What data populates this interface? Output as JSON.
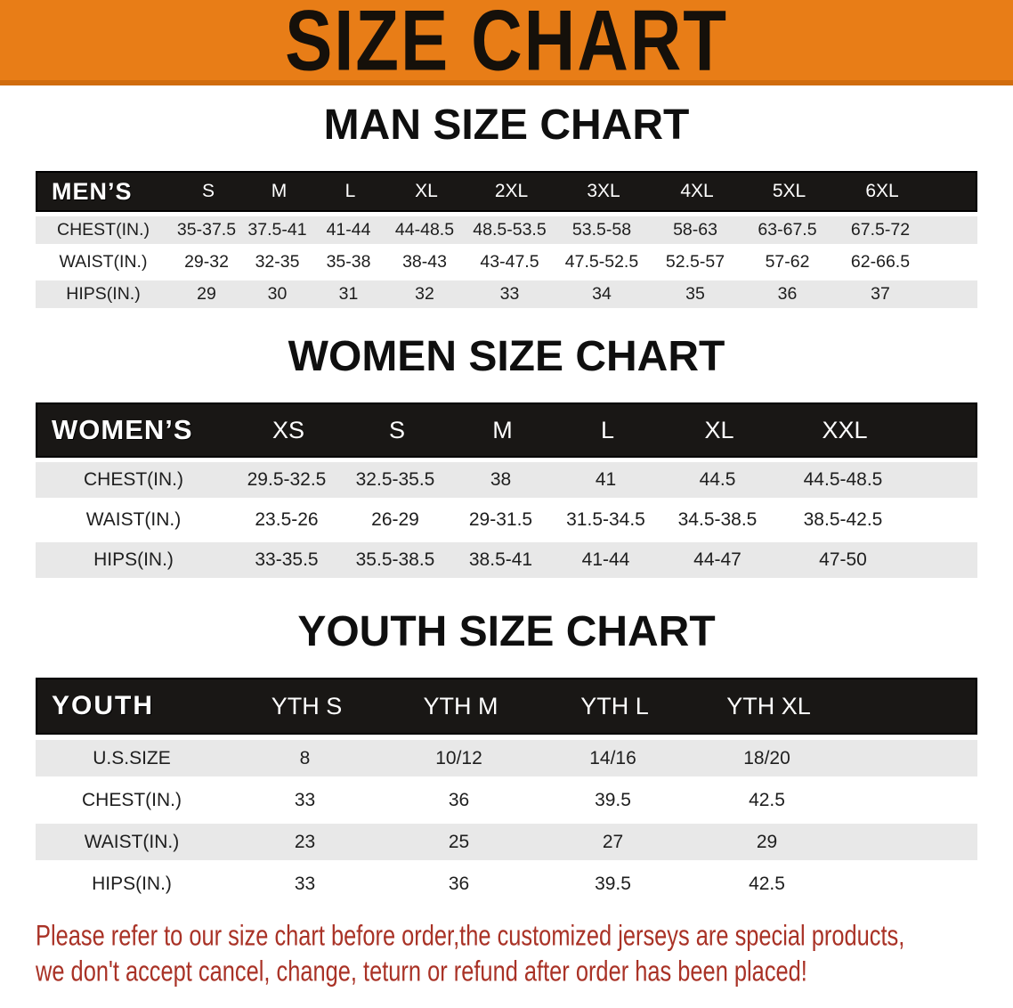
{
  "banner": {
    "title": "SIZE CHART"
  },
  "men": {
    "heading": "MAN SIZE CHART",
    "corner": "MEN’S",
    "columns": [
      "S",
      "M",
      "L",
      "XL",
      "2XL",
      "3XL",
      "4XL",
      "5XL",
      "6XL"
    ],
    "rows": [
      {
        "label": "CHEST(IN.)",
        "values": [
          "35-37.5",
          "37.5-41",
          "41-44",
          "44-48.5",
          "48.5-53.5",
          "53.5-58",
          "58-63",
          "63-67.5",
          "67.5-72"
        ]
      },
      {
        "label": "WAIST(IN.)",
        "values": [
          "29-32",
          "32-35",
          "35-38",
          "38-43",
          "43-47.5",
          "47.5-52.5",
          "52.5-57",
          "57-62",
          "62-66.5"
        ]
      },
      {
        "label": "HIPS(IN.)",
        "values": [
          "29",
          "30",
          "31",
          "32",
          "33",
          "34",
          "35",
          "36",
          "37"
        ]
      }
    ]
  },
  "women": {
    "heading": "WOMEN SIZE CHART",
    "corner": "WOMEN’S",
    "columns": [
      "XS",
      "S",
      "M",
      "L",
      "XL",
      "XXL"
    ],
    "rows": [
      {
        "label": "CHEST(IN.)",
        "values": [
          "29.5-32.5",
          "32.5-35.5",
          "38",
          "41",
          "44.5",
          "44.5-48.5"
        ]
      },
      {
        "label": "WAIST(IN.)",
        "values": [
          "23.5-26",
          "26-29",
          "29-31.5",
          "31.5-34.5",
          "34.5-38.5",
          "38.5-42.5"
        ]
      },
      {
        "label": "HIPS(IN.)",
        "values": [
          "33-35.5",
          "35.5-38.5",
          "38.5-41",
          "41-44",
          "44-47",
          "47-50"
        ]
      }
    ]
  },
  "youth": {
    "heading": "YOUTH SIZE CHART",
    "corner": "YOUTH",
    "columns": [
      "YTH S",
      "YTH M",
      "YTH L",
      "YTH XL"
    ],
    "rows": [
      {
        "label": "U.S.SIZE",
        "values": [
          "8",
          "10/12",
          "14/16",
          "18/20"
        ]
      },
      {
        "label": "CHEST(IN.)",
        "values": [
          "33",
          "36",
          "39.5",
          "42.5"
        ]
      },
      {
        "label": "WAIST(IN.)",
        "values": [
          "23",
          "25",
          "27",
          "29"
        ]
      },
      {
        "label": "HIPS(IN.)",
        "values": [
          "33",
          "36",
          "39.5",
          "42.5"
        ]
      }
    ]
  },
  "footer": {
    "line1": "Please refer to our size chart before order,the customized jerseys are special products,",
    "line2": "we don't accept cancel, change, teturn or refund after order has been placed!"
  },
  "colors": {
    "banner_orange": "#E87D17",
    "banner_orange_edge": "#D06C0E",
    "header_black": "#191715",
    "row_gray": "#E8E8E8",
    "note_red": "#A93226"
  }
}
